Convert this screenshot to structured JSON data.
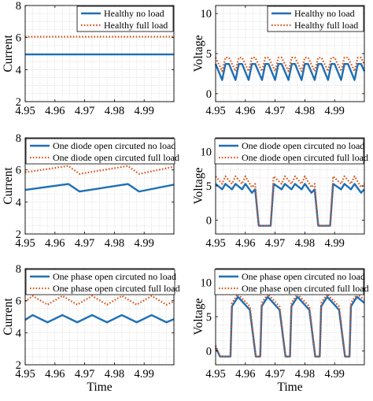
{
  "chart_data": [
    {
      "type": "line",
      "ylabel": "Current",
      "xlabel": "",
      "xlim": [
        4.95,
        5.0
      ],
      "ylim": [
        2,
        8
      ],
      "xticks": [
        4.95,
        4.96,
        4.97,
        4.98,
        4.99
      ],
      "yticks": [
        2,
        4,
        6,
        8
      ],
      "grid": true,
      "legend": "top-right",
      "series": [
        {
          "name": "Healthy no load",
          "color": "#1f6fb5",
          "style": "solid",
          "x": [
            4.95,
            4.9625,
            4.975,
            4.9875,
            5.0
          ],
          "y": [
            4.95,
            4.95,
            4.95,
            4.95,
            4.95
          ]
        },
        {
          "name": "Healthy full load",
          "color": "#d9541a",
          "style": "dotted",
          "x": [
            4.95,
            4.9625,
            4.975,
            4.9875,
            5.0
          ],
          "y": [
            6.05,
            6.05,
            6.05,
            6.05,
            6.05
          ]
        }
      ]
    },
    {
      "type": "line",
      "ylabel": "Voltage",
      "xlabel": "",
      "xlim": [
        4.95,
        5.0
      ],
      "ylim": [
        -1,
        11
      ],
      "xticks": [
        4.95,
        4.96,
        4.97,
        4.98,
        4.99
      ],
      "yticks": [
        0,
        5,
        10
      ],
      "grid": true,
      "legend": "top-right",
      "series": [
        {
          "name": "Healthy no load",
          "color": "#1f6fb5",
          "style": "solid",
          "x": [
            4.95,
            4.9522,
            4.9533,
            4.9545,
            4.9567,
            4.9578,
            4.9589,
            4.9611,
            4.9622,
            4.9633,
            4.9656,
            4.9667,
            4.9678,
            4.97,
            4.9711,
            4.9722,
            4.9745,
            4.9756,
            4.9767,
            4.9789,
            4.98,
            4.9811,
            4.9833,
            4.9845,
            4.9856,
            4.9878,
            4.9889,
            4.99,
            4.9922,
            4.9933,
            4.9945,
            4.9967,
            4.9978,
            4.9989,
            5.0
          ],
          "y": [
            3.7,
            1.7,
            3.7,
            3.7,
            1.7,
            3.7,
            3.7,
            1.7,
            3.7,
            3.7,
            1.7,
            3.7,
            3.7,
            1.7,
            3.7,
            3.7,
            1.7,
            3.7,
            3.7,
            1.7,
            3.7,
            3.7,
            1.7,
            3.7,
            3.7,
            1.7,
            3.7,
            3.7,
            1.7,
            3.7,
            3.7,
            1.7,
            3.7,
            3.7,
            2.8
          ]
        },
        {
          "name": "Healthy full load",
          "color": "#d9541a",
          "style": "dotted",
          "x": [
            4.95,
            4.9522,
            4.9533,
            4.9545,
            4.9567,
            4.9578,
            4.9589,
            4.9611,
            4.9622,
            4.9633,
            4.9656,
            4.9667,
            4.9678,
            4.97,
            4.9711,
            4.9722,
            4.9745,
            4.9756,
            4.9767,
            4.9789,
            4.98,
            4.9811,
            4.9833,
            4.9845,
            4.9856,
            4.9878,
            4.9889,
            4.99,
            4.9922,
            4.9933,
            4.9945,
            4.9967,
            4.9978,
            4.9989,
            5.0
          ],
          "y": [
            4.5,
            2.8,
            4.5,
            4.5,
            2.8,
            4.5,
            4.5,
            2.8,
            4.5,
            4.5,
            2.8,
            4.5,
            4.5,
            2.8,
            4.5,
            4.5,
            2.8,
            4.5,
            4.5,
            2.8,
            4.5,
            4.5,
            2.8,
            4.5,
            4.5,
            2.8,
            4.5,
            4.5,
            2.8,
            4.5,
            4.5,
            2.8,
            4.5,
            4.5,
            3.6
          ]
        }
      ]
    },
    {
      "type": "line",
      "ylabel": "Current",
      "xlabel": "",
      "xlim": [
        4.95,
        5.0
      ],
      "ylim": [
        2,
        8
      ],
      "xticks": [
        4.95,
        4.96,
        4.97,
        4.98,
        4.99
      ],
      "yticks": [
        2,
        4,
        6,
        8
      ],
      "grid": true,
      "legend": "top",
      "series": [
        {
          "name": "One diode open circuted no load",
          "color": "#1f6fb5",
          "style": "solid",
          "x": [
            4.95,
            4.9645,
            4.9683,
            4.9845,
            4.9883,
            5.0
          ],
          "y": [
            4.75,
            5.12,
            4.65,
            5.12,
            4.65,
            5.08
          ]
        },
        {
          "name": "One diode open circuted full load",
          "color": "#d9541a",
          "style": "dotted",
          "x": [
            4.95,
            4.9645,
            4.9683,
            4.9845,
            4.9883,
            5.0
          ],
          "y": [
            5.85,
            6.25,
            5.75,
            6.25,
            5.75,
            6.2
          ]
        }
      ]
    },
    {
      "type": "line",
      "ylabel": "Voltage",
      "xlabel": "",
      "xlim": [
        4.95,
        5.0
      ],
      "ylim": [
        -2,
        12
      ],
      "xticks": [
        4.95,
        4.96,
        4.97,
        4.98,
        4.99
      ],
      "yticks": [
        0,
        5,
        10
      ],
      "grid": true,
      "legend": "top",
      "series": [
        {
          "name": "One diode open circuted no load",
          "color": "#1f6fb5",
          "style": "solid",
          "x": [
            4.95,
            4.9522,
            4.9533,
            4.9555,
            4.9567,
            4.9589,
            4.96,
            4.9622,
            4.9633,
            4.9645,
            4.967,
            4.9685,
            4.9695,
            4.9722,
            4.9733,
            4.9755,
            4.9767,
            4.9789,
            4.98,
            4.9822,
            4.9833,
            4.9845,
            4.987,
            4.9885,
            4.9895,
            4.9922,
            4.9933,
            4.9955,
            4.9967,
            4.9989,
            5.0
          ],
          "y": [
            5.3,
            4.5,
            5.3,
            4.5,
            5.3,
            4.5,
            5.3,
            4.0,
            4.5,
            -0.8,
            -0.8,
            -0.8,
            5.3,
            4.5,
            5.3,
            4.5,
            5.3,
            4.5,
            5.3,
            4.0,
            4.5,
            -0.8,
            -0.8,
            -0.8,
            5.3,
            4.5,
            5.3,
            4.5,
            5.3,
            4.0,
            4.5
          ]
        },
        {
          "name": "One diode open circuted full load",
          "color": "#d9541a",
          "style": "dotted",
          "x": [
            4.95,
            4.9522,
            4.9533,
            4.9555,
            4.9567,
            4.9589,
            4.96,
            4.9622,
            4.9633,
            4.9645,
            4.967,
            4.9685,
            4.9695,
            4.9722,
            4.9733,
            4.9755,
            4.9767,
            4.9789,
            4.98,
            4.9822,
            4.9833,
            4.9845,
            4.987,
            4.9885,
            4.9895,
            4.9922,
            4.9933,
            4.9955,
            4.9967,
            4.9989,
            5.0
          ],
          "y": [
            6.4,
            5.3,
            6.4,
            5.3,
            6.4,
            5.3,
            6.4,
            4.8,
            5.3,
            -0.8,
            -0.8,
            -0.8,
            6.4,
            5.3,
            6.4,
            5.3,
            6.4,
            5.3,
            6.4,
            4.8,
            5.3,
            -0.8,
            -0.8,
            -0.8,
            6.4,
            5.3,
            6.4,
            5.3,
            6.4,
            4.8,
            5.3
          ]
        }
      ]
    },
    {
      "type": "line",
      "ylabel": "Current",
      "xlabel": "Time",
      "xlim": [
        4.95,
        5.0
      ],
      "ylim": [
        2,
        8
      ],
      "xticks": [
        4.95,
        4.96,
        4.97,
        4.98,
        4.99
      ],
      "yticks": [
        2,
        4,
        6,
        8
      ],
      "grid": true,
      "legend": "top",
      "series": [
        {
          "name": "One phase open circuted no load",
          "color": "#1f6fb5",
          "style": "solid",
          "x": [
            4.95,
            4.9525,
            4.9575,
            4.9625,
            4.9675,
            4.9725,
            4.9775,
            4.9825,
            4.9875,
            4.9925,
            4.9975,
            5.0
          ],
          "y": [
            4.8,
            5.1,
            4.65,
            5.1,
            4.65,
            5.1,
            4.65,
            5.1,
            4.65,
            5.1,
            4.65,
            4.85
          ]
        },
        {
          "name": "One phase open circuted full load",
          "color": "#d9541a",
          "style": "dotted",
          "x": [
            4.95,
            4.9525,
            4.9575,
            4.9625,
            4.9675,
            4.9725,
            4.9775,
            4.9825,
            4.9875,
            4.9925,
            4.9975,
            5.0
          ],
          "y": [
            5.95,
            6.3,
            5.75,
            6.3,
            5.75,
            6.3,
            5.75,
            6.3,
            5.75,
            6.3,
            5.75,
            5.95
          ]
        }
      ]
    },
    {
      "type": "line",
      "ylabel": "Voltage",
      "xlabel": "Time",
      "xlim": [
        4.95,
        5.0
      ],
      "ylim": [
        -2,
        12
      ],
      "xticks": [
        4.95,
        4.96,
        4.97,
        4.98,
        4.99
      ],
      "yticks": [
        0,
        5,
        10
      ],
      "grid": true,
      "legend": "top",
      "series": [
        {
          "name": "One phase open circuted no load",
          "color": "#1f6fb5",
          "style": "solid",
          "x": [
            4.95,
            4.9515,
            4.9535,
            4.955,
            4.9555,
            4.9575,
            4.9615,
            4.9635,
            4.965,
            4.9655,
            4.9675,
            4.9715,
            4.9735,
            4.975,
            4.9755,
            4.9775,
            4.9815,
            4.9835,
            4.985,
            4.9855,
            4.9875,
            4.9915,
            4.9935,
            4.995,
            4.9955,
            4.9975,
            5.0
          ],
          "y": [
            0.5,
            -0.8,
            -0.8,
            -0.8,
            6.5,
            7.9,
            6.0,
            -0.8,
            -0.8,
            6.5,
            7.9,
            6.0,
            -0.8,
            -0.8,
            6.5,
            7.9,
            6.0,
            -0.8,
            -0.8,
            6.5,
            7.9,
            6.0,
            -0.8,
            -0.8,
            6.5,
            7.9,
            7.0
          ]
        },
        {
          "name": "One phase open circuted full load",
          "color": "#d9541a",
          "style": "dotted",
          "x": [
            4.95,
            4.9515,
            4.9535,
            4.955,
            4.9555,
            4.9575,
            4.9615,
            4.9635,
            4.965,
            4.9655,
            4.9675,
            4.9715,
            4.9735,
            4.975,
            4.9755,
            4.9775,
            4.9815,
            4.9835,
            4.985,
            4.9855,
            4.9875,
            4.9915,
            4.9935,
            4.995,
            4.9955,
            4.9975,
            5.0
          ],
          "y": [
            0.8,
            -0.8,
            -0.8,
            -0.8,
            7.0,
            8.3,
            6.5,
            -0.8,
            -0.8,
            7.0,
            8.3,
            6.5,
            -0.8,
            -0.8,
            7.0,
            8.3,
            6.5,
            -0.8,
            -0.8,
            7.0,
            8.3,
            6.5,
            -0.8,
            -0.8,
            7.0,
            8.3,
            7.5
          ]
        }
      ]
    }
  ]
}
